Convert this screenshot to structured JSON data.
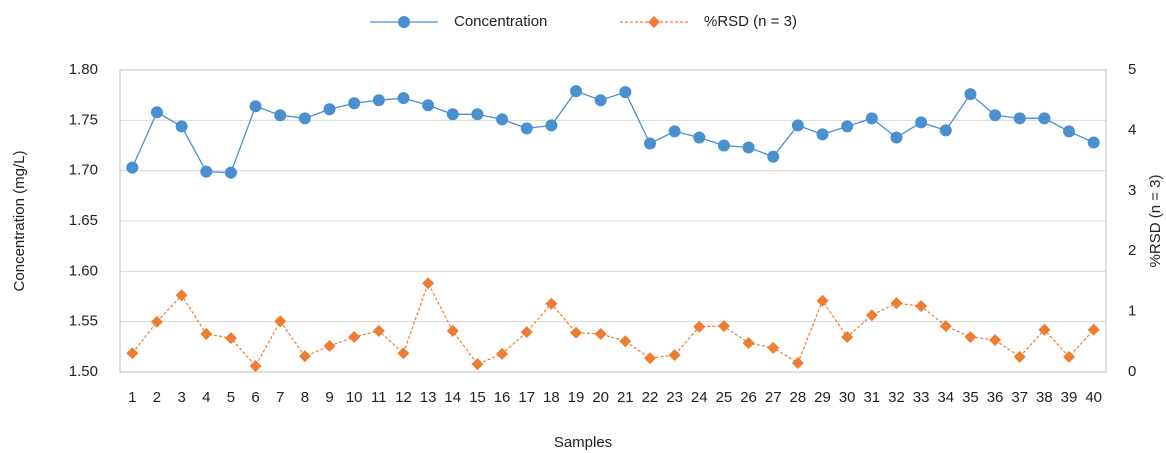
{
  "chart_data": {
    "type": "line",
    "x_label": "Samples",
    "y_label": "Concentration (mg/L)",
    "y2_label": "%RSD (n = 3)",
    "categories": [
      "1",
      "2",
      "3",
      "4",
      "5",
      "6",
      "7",
      "8",
      "9",
      "10",
      "11",
      "12",
      "13",
      "14",
      "15",
      "16",
      "17",
      "18",
      "19",
      "20",
      "21",
      "22",
      "23",
      "24",
      "25",
      "26",
      "27",
      "28",
      "29",
      "30",
      "31",
      "32",
      "33",
      "34",
      "35",
      "36",
      "37",
      "38",
      "39",
      "40"
    ],
    "series": [
      {
        "name": "Concentration",
        "color": "#4a8fd0",
        "marker": "circle",
        "values": [
          1.703,
          1.758,
          1.744,
          1.699,
          1.698,
          1.764,
          1.755,
          1.752,
          1.761,
          1.767,
          1.77,
          1.772,
          1.765,
          1.756,
          1.756,
          1.751,
          1.742,
          1.745,
          1.779,
          1.77,
          1.778,
          1.727,
          1.739,
          1.733,
          1.725,
          1.723,
          1.714,
          1.745,
          1.736,
          1.744,
          1.752,
          1.733,
          1.748,
          1.74,
          1.776,
          1.755,
          1.752,
          1.752,
          1.739,
          1.728
        ]
      },
      {
        "name": "%RSD (n = 3)",
        "color": "#ed7d31",
        "marker": "diamond",
        "axis": "y2",
        "dashed": true,
        "values": [
          0.31,
          0.83,
          1.27,
          0.63,
          0.56,
          0.1,
          0.84,
          0.26,
          0.43,
          0.58,
          0.68,
          0.31,
          1.47,
          0.68,
          0.13,
          0.3,
          0.66,
          1.13,
          0.65,
          0.63,
          0.51,
          0.23,
          0.28,
          0.75,
          0.76,
          0.48,
          0.4,
          0.15,
          1.18,
          0.58,
          0.94,
          1.14,
          1.09,
          0.76,
          0.58,
          0.53,
          0.25,
          0.7,
          0.25,
          0.7
        ]
      }
    ],
    "ylim": [
      1.5,
      1.8
    ],
    "yticks": [
      {
        "value": 1.5,
        "label": "1.50"
      },
      1.55,
      {
        "value": 1.6,
        "label": "1.60"
      },
      1.65,
      {
        "value": 1.7,
        "label": "1.70"
      },
      1.75,
      {
        "value": 1.8,
        "label": "1.80"
      }
    ],
    "y2lim": [
      0,
      5
    ],
    "y2ticks": [
      0,
      1,
      2,
      3,
      4,
      5
    ],
    "grid": true,
    "legend": "top"
  }
}
